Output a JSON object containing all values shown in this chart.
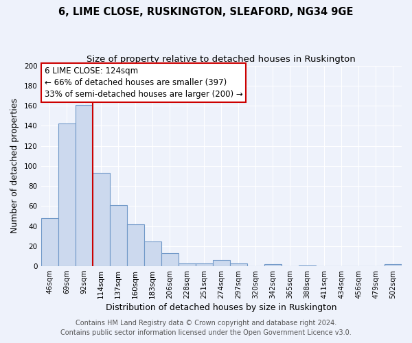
{
  "title": "6, LIME CLOSE, RUSKINGTON, SLEAFORD, NG34 9GE",
  "subtitle": "Size of property relative to detached houses in Ruskington",
  "xlabel": "Distribution of detached houses by size in Ruskington",
  "ylabel": "Number of detached properties",
  "bar_labels": [
    "46sqm",
    "69sqm",
    "92sqm",
    "114sqm",
    "137sqm",
    "160sqm",
    "183sqm",
    "206sqm",
    "228sqm",
    "251sqm",
    "274sqm",
    "297sqm",
    "320sqm",
    "342sqm",
    "365sqm",
    "388sqm",
    "411sqm",
    "434sqm",
    "456sqm",
    "479sqm",
    "502sqm"
  ],
  "bar_values": [
    48,
    142,
    161,
    93,
    61,
    42,
    25,
    13,
    3,
    3,
    6,
    3,
    0,
    2,
    0,
    1,
    0,
    0,
    0,
    0,
    2
  ],
  "bar_color": "#ccd9ee",
  "bar_edge_color": "#7098c8",
  "vline_after_index": 2,
  "vline_color": "#cc0000",
  "annotation_text_line1": "6 LIME CLOSE: 124sqm",
  "annotation_text_line2": "← 66% of detached houses are smaller (397)",
  "annotation_text_line3": "33% of semi-detached houses are larger (200) →",
  "ylim": [
    0,
    200
  ],
  "yticks": [
    0,
    20,
    40,
    60,
    80,
    100,
    120,
    140,
    160,
    180,
    200
  ],
  "footer_line1": "Contains HM Land Registry data © Crown copyright and database right 2024.",
  "footer_line2": "Contains public sector information licensed under the Open Government Licence v3.0.",
  "bg_color": "#eef2fb",
  "plot_bg_color": "#eef2fb",
  "grid_color": "#ffffff",
  "title_fontsize": 10.5,
  "subtitle_fontsize": 9.5,
  "axis_label_fontsize": 9,
  "tick_fontsize": 7.5,
  "footer_fontsize": 7,
  "annotation_fontsize": 8.5
}
